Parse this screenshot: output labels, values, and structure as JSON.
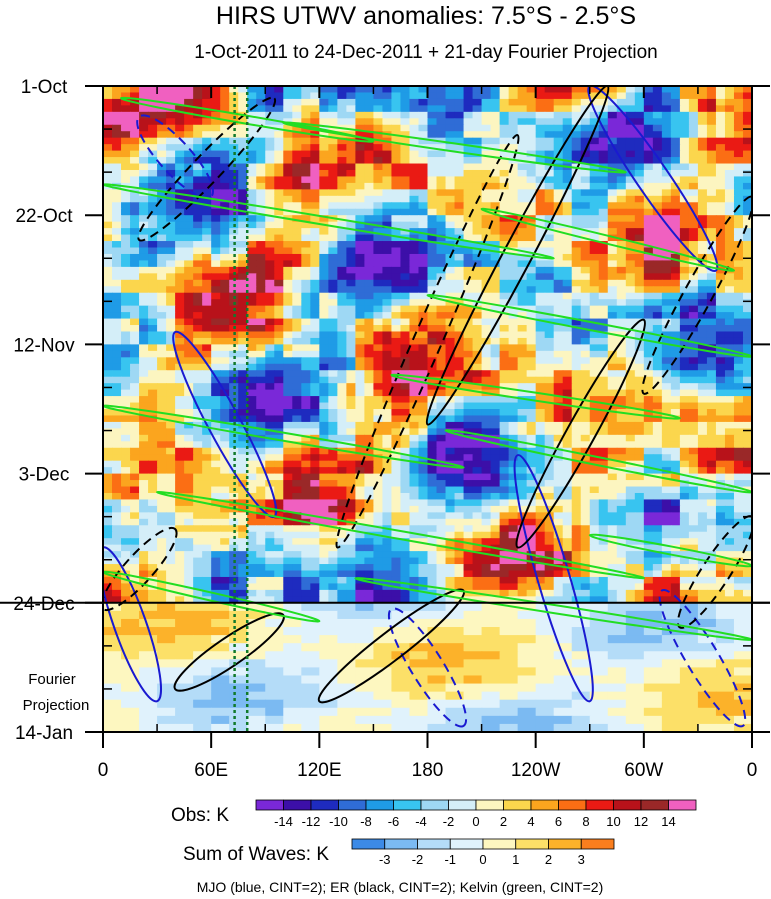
{
  "chart_data": {
    "type": "heatmap",
    "title": "HIRS UTWV anomalies: 7.5°S - 2.5°S",
    "subtitle": "1-Oct-2011 to 24-Dec-2011 + 21-day Fourier Projection",
    "x_ticks": [
      "0",
      "60E",
      "120E",
      "180",
      "120W",
      "60W",
      "0"
    ],
    "x_tick_values": [
      0,
      60,
      120,
      180,
      240,
      300,
      360
    ],
    "x_range": [
      0,
      360
    ],
    "y_ticks": [
      "1-Oct",
      "22-Oct",
      "12-Nov",
      "3-Dec",
      "24-Dec",
      "14-Jan"
    ],
    "y_tick_days": [
      0,
      21,
      42,
      63,
      84,
      105
    ],
    "y_range_days": [
      0,
      105
    ],
    "projection_label": [
      "Fourier",
      "Projection"
    ],
    "projection_start_day": 84,
    "reference_longitudes": [
      73,
      80
    ],
    "obs_label": "Obs: K",
    "obs_levels": [
      "-14",
      "-12",
      "-10",
      "-8",
      "-6",
      "-4",
      "-2",
      "0",
      "2",
      "4",
      "6",
      "8",
      "10",
      "12",
      "14"
    ],
    "obs_colors": [
      "#7a28d8",
      "#3c0fa8",
      "#1e2bbf",
      "#2f6cd6",
      "#1f9be6",
      "#38c4f0",
      "#9ed8f4",
      "#d4eef8",
      "#fcf5c0",
      "#fbd64d",
      "#fba51e",
      "#fb6e14",
      "#ea1a14",
      "#b8121a",
      "#9a2828",
      "#f060c0"
    ],
    "waves_label": "Sum of Waves: K",
    "waves_levels": [
      "-3",
      "-2",
      "-1",
      "0",
      "1",
      "2",
      "3"
    ],
    "waves_colors": [
      "#3c8ae6",
      "#7bbaf2",
      "#b4dcf8",
      "#e0f2fc",
      "#fdf7c0",
      "#fce068",
      "#fcb22a",
      "#fa7e1e"
    ],
    "footer": "MJO (blue, CINT=2); ER (black, CINT=2); Kelvin (green, CINT=2)",
    "colors": {
      "mjo": "#1a1ad0",
      "er": "#000000",
      "kelvin": "#22dd22",
      "ref_line": "#117a2b"
    },
    "kelvin_bands": [
      {
        "lon0": 10,
        "day0": 2,
        "lon1": 150,
        "day1": 9
      },
      {
        "lon0": 0,
        "day0": 16,
        "lon1": 250,
        "day1": 28
      },
      {
        "lon0": 100,
        "day0": 6,
        "lon1": 290,
        "day1": 14
      },
      {
        "lon0": 210,
        "day0": 20,
        "lon1": 350,
        "day1": 30
      },
      {
        "lon0": 180,
        "day0": 34,
        "lon1": 360,
        "day1": 44
      },
      {
        "lon0": 160,
        "day0": 47,
        "lon1": 320,
        "day1": 54
      },
      {
        "lon0": 0,
        "day0": 52,
        "lon1": 200,
        "day1": 62
      },
      {
        "lon0": 190,
        "day0": 56,
        "lon1": 360,
        "day1": 66
      },
      {
        "lon0": 30,
        "day0": 66,
        "lon1": 300,
        "day1": 80
      },
      {
        "lon0": 0,
        "day0": 79,
        "lon1": 120,
        "day1": 87
      },
      {
        "lon0": 140,
        "day0": 80,
        "lon1": 360,
        "day1": 90
      },
      {
        "lon0": 270,
        "day0": 73,
        "lon1": 360,
        "day1": 78
      }
    ],
    "er_bands": [
      {
        "lon0": 130,
        "day0": 75,
        "lon1": 230,
        "day1": 8
      },
      {
        "lon0": 180,
        "day0": 55,
        "lon1": 280,
        "day1": 0
      },
      {
        "lon0": 20,
        "day0": 25,
        "lon1": 95,
        "day1": 2
      },
      {
        "lon0": 230,
        "day0": 75,
        "lon1": 300,
        "day1": 38
      },
      {
        "lon0": 300,
        "day0": 50,
        "lon1": 360,
        "day1": 18
      },
      {
        "lon0": 120,
        "day0": 100,
        "lon1": 200,
        "day1": 82
      },
      {
        "lon0": 320,
        "day0": 88,
        "lon1": 360,
        "day1": 70
      },
      {
        "lon0": 40,
        "day0": 98,
        "lon1": 100,
        "day1": 86
      },
      {
        "lon0": 0,
        "day0": 85,
        "lon1": 40,
        "day1": 72
      }
    ],
    "mjo_bands": [
      {
        "lon0": 40,
        "day0": 40,
        "lon1": 95,
        "day1": 70
      },
      {
        "lon0": 20,
        "day0": 5,
        "lon1": 60,
        "day1": 18
      },
      {
        "lon0": 230,
        "day0": 60,
        "lon1": 270,
        "day1": 100
      },
      {
        "lon0": 160,
        "day0": 85,
        "lon1": 200,
        "day1": 104
      },
      {
        "lon0": 270,
        "day0": 0,
        "lon1": 340,
        "day1": 30
      },
      {
        "lon0": 310,
        "day0": 82,
        "lon1": 355,
        "day1": 104
      },
      {
        "lon0": 0,
        "day0": 75,
        "lon1": 30,
        "day1": 100
      }
    ]
  }
}
